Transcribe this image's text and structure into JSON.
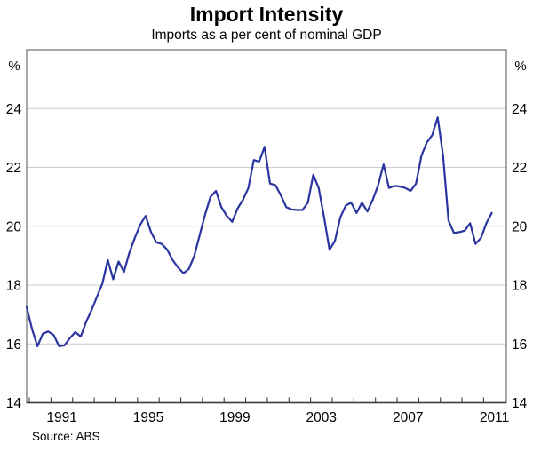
{
  "header": {
    "title": "Import Intensity",
    "subtitle": "Imports as a per cent of nominal GDP"
  },
  "source": "Source: ABS",
  "axes": {
    "unit_left": "%",
    "unit_right": "%",
    "y_tick_labels": [
      14,
      16,
      18,
      20,
      22,
      24
    ],
    "y_gridline_values": [
      16,
      18,
      20,
      22,
      24
    ],
    "x_year_labels": [
      1991,
      1995,
      1999,
      2003,
      2007,
      2011
    ],
    "x_tick_first_year": 1990,
    "x_tick_last_year": 2011
  },
  "style": {
    "line_color": "#2A35A0",
    "grid_color": "#CCCCCC",
    "frame_color": "#7A7A7A",
    "axis_color": "#3A3A3A",
    "text_color": "#000000"
  },
  "chart_data": {
    "type": "line",
    "title": "Import Intensity",
    "subtitle": "Imports as a per cent of nominal GDP",
    "ylabel": "%",
    "ylim": [
      14,
      26
    ],
    "grid": "horizontal",
    "legend": "none",
    "frequency": "quarterly",
    "start_quarter": "1989Q4",
    "end_quarter": "2011Q2",
    "x_start": 1989.875,
    "x_step": 0.25,
    "x_axis_range": [
      1989.875,
      2012.05
    ],
    "values": [
      17.25,
      16.5,
      15.92,
      16.35,
      16.42,
      16.3,
      15.92,
      15.95,
      16.2,
      16.4,
      16.25,
      16.75,
      17.15,
      17.6,
      18.05,
      18.85,
      18.2,
      18.8,
      18.45,
      19.1,
      19.6,
      20.05,
      20.35,
      19.8,
      19.45,
      19.4,
      19.2,
      18.85,
      18.6,
      18.4,
      18.55,
      19.0,
      19.7,
      20.4,
      21.0,
      21.2,
      20.65,
      20.35,
      20.15,
      20.6,
      20.9,
      21.3,
      22.25,
      22.2,
      22.7,
      21.45,
      21.4,
      21.05,
      20.65,
      20.57,
      20.55,
      20.55,
      20.8,
      21.75,
      21.3,
      20.3,
      19.2,
      19.5,
      20.3,
      20.7,
      20.8,
      20.45,
      20.8,
      20.5,
      20.9,
      21.4,
      22.1,
      21.3,
      21.37,
      21.35,
      21.3,
      21.2,
      21.45,
      22.4,
      22.85,
      23.1,
      23.7,
      22.4,
      20.2,
      19.77,
      19.8,
      19.85,
      20.1,
      19.4,
      19.6,
      20.1,
      20.45
    ]
  }
}
